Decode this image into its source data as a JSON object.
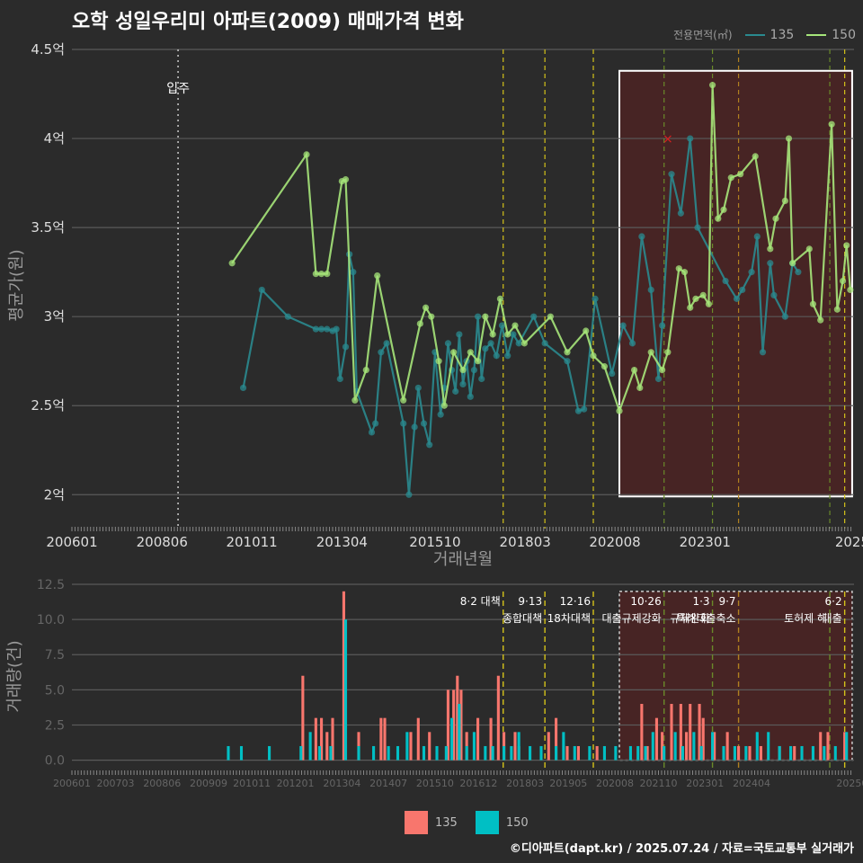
{
  "title": "오학 성일우리미 아파트(2009) 매매가격 변화",
  "source": "©디아파트(dapt.kr) / 2025.07.24 / 자료=국토교통부 실거래가",
  "legend": {
    "title": "전용면적(㎡)",
    "items": [
      {
        "name": "135",
        "line": "#2a8a8f",
        "bar": "#f8766d"
      },
      {
        "name": "150",
        "line": "#a6e67a",
        "bar": "#00bfc4"
      }
    ]
  },
  "chart_data": [
    {
      "type": "line",
      "xlabel": "거래년월",
      "ylabel": "평균가(원)",
      "ylim": [
        1.85,
        4.5
      ],
      "yticks": [
        {
          "v": 2,
          "label": "2억"
        },
        {
          "v": 2.5,
          "label": "2.5억"
        },
        {
          "v": 3,
          "label": "3억"
        },
        {
          "v": 3.5,
          "label": "3.5억"
        },
        {
          "v": 4,
          "label": "4억"
        },
        {
          "v": 4.5,
          "label": "4.5억"
        }
      ],
      "xticks": [
        "200601",
        "200806",
        "201011",
        "201304",
        "201510",
        "201803",
        "202008",
        "202301",
        "2025"
      ],
      "annotation": "입주",
      "series": [
        {
          "name": "135",
          "color": "#2a8a8f",
          "points": [
            [
              2010.6,
              2.6
            ],
            [
              2011.1,
              3.15
            ],
            [
              2011.8,
              3.0
            ],
            [
              2012.55,
              2.93
            ],
            [
              2012.7,
              2.93
            ],
            [
              2012.85,
              2.93
            ],
            [
              2013.0,
              2.92
            ],
            [
              2013.1,
              2.93
            ],
            [
              2013.2,
              2.65
            ],
            [
              2013.35,
              2.83
            ],
            [
              2013.45,
              3.35
            ],
            [
              2013.55,
              3.25
            ],
            [
              2013.65,
              2.58
            ],
            [
              2014.05,
              2.35
            ],
            [
              2014.15,
              2.4
            ],
            [
              2014.3,
              2.8
            ],
            [
              2014.45,
              2.85
            ],
            [
              2014.9,
              2.4
            ],
            [
              2015.05,
              2.0
            ],
            [
              2015.2,
              2.38
            ],
            [
              2015.3,
              2.6
            ],
            [
              2015.45,
              2.4
            ],
            [
              2015.6,
              2.28
            ],
            [
              2015.75,
              2.8
            ],
            [
              2015.9,
              2.45
            ],
            [
              2016.0,
              2.6
            ],
            [
              2016.1,
              2.85
            ],
            [
              2016.2,
              2.7
            ],
            [
              2016.3,
              2.58
            ],
            [
              2016.4,
              2.9
            ],
            [
              2016.5,
              2.62
            ],
            [
              2016.6,
              2.75
            ],
            [
              2016.7,
              2.55
            ],
            [
              2016.8,
              2.7
            ],
            [
              2016.9,
              3.0
            ],
            [
              2017.0,
              2.65
            ],
            [
              2017.1,
              2.82
            ],
            [
              2017.25,
              2.85
            ],
            [
              2017.4,
              2.78
            ],
            [
              2017.55,
              2.95
            ],
            [
              2017.7,
              2.78
            ],
            [
              2017.85,
              2.9
            ],
            [
              2018.0,
              2.85
            ],
            [
              2018.4,
              3.0
            ],
            [
              2018.7,
              2.85
            ],
            [
              2019.3,
              2.75
            ],
            [
              2019.6,
              2.47
            ],
            [
              2019.75,
              2.48
            ],
            [
              2020.05,
              3.1
            ],
            [
              2020.5,
              2.68
            ],
            [
              2020.8,
              2.95
            ],
            [
              2021.05,
              2.85
            ],
            [
              2021.3,
              3.45
            ],
            [
              2021.55,
              3.15
            ],
            [
              2021.75,
              2.65
            ],
            [
              2021.85,
              2.95
            ],
            [
              2022.1,
              3.8
            ],
            [
              2022.35,
              3.58
            ],
            [
              2022.6,
              4.0
            ],
            [
              2022.8,
              3.5
            ],
            [
              2023.55,
              3.2
            ],
            [
              2023.85,
              3.1
            ],
            [
              2024.0,
              3.15
            ],
            [
              2024.25,
              3.25
            ],
            [
              2024.4,
              3.45
            ],
            [
              2024.55,
              2.8
            ],
            [
              2024.75,
              3.3
            ],
            [
              2024.85,
              3.12
            ],
            [
              2025.15,
              3.0
            ],
            [
              2025.35,
              3.3
            ],
            [
              2025.5,
              3.25
            ]
          ]
        },
        {
          "name": "150",
          "color": "#a6e67a",
          "points": [
            [
              2010.3,
              3.3
            ],
            [
              2012.3,
              3.91
            ],
            [
              2012.55,
              3.24
            ],
            [
              2012.7,
              3.24
            ],
            [
              2012.85,
              3.24
            ],
            [
              2013.25,
              3.76
            ],
            [
              2013.35,
              3.77
            ],
            [
              2013.6,
              2.53
            ],
            [
              2013.9,
              2.7
            ],
            [
              2014.2,
              3.23
            ],
            [
              2014.9,
              2.53
            ],
            [
              2015.35,
              2.96
            ],
            [
              2015.5,
              3.05
            ],
            [
              2015.65,
              3.0
            ],
            [
              2015.85,
              2.75
            ],
            [
              2016.0,
              2.5
            ],
            [
              2016.25,
              2.8
            ],
            [
              2016.5,
              2.7
            ],
            [
              2016.7,
              2.8
            ],
            [
              2016.9,
              2.75
            ],
            [
              2017.1,
              3.0
            ],
            [
              2017.3,
              2.9
            ],
            [
              2017.5,
              3.1
            ],
            [
              2017.7,
              2.9
            ],
            [
              2017.9,
              2.95
            ],
            [
              2018.15,
              2.85
            ],
            [
              2018.85,
              3.0
            ],
            [
              2019.3,
              2.8
            ],
            [
              2019.8,
              2.92
            ],
            [
              2020.0,
              2.78
            ],
            [
              2020.3,
              2.72
            ],
            [
              2020.7,
              2.47
            ],
            [
              2021.1,
              2.7
            ],
            [
              2021.25,
              2.6
            ],
            [
              2021.55,
              2.8
            ],
            [
              2021.85,
              2.7
            ],
            [
              2022.0,
              2.8
            ],
            [
              2022.3,
              3.27
            ],
            [
              2022.45,
              3.25
            ],
            [
              2022.6,
              3.05
            ],
            [
              2022.75,
              3.1
            ],
            [
              2022.95,
              3.12
            ],
            [
              2023.1,
              3.07
            ],
            [
              2023.2,
              4.3
            ],
            [
              2023.35,
              3.55
            ],
            [
              2023.5,
              3.6
            ],
            [
              2023.7,
              3.78
            ],
            [
              2023.95,
              3.8
            ],
            [
              2024.35,
              3.9
            ],
            [
              2024.75,
              3.38
            ],
            [
              2024.9,
              3.55
            ],
            [
              2025.15,
              3.65
            ],
            [
              2025.25,
              4.0
            ],
            [
              2025.35,
              3.3
            ],
            [
              2025.8,
              3.38
            ],
            [
              2025.9,
              3.07
            ],
            [
              2026.1,
              2.98
            ],
            [
              2026.4,
              4.08
            ],
            [
              2026.55,
              3.04
            ],
            [
              2026.7,
              3.2
            ],
            [
              2026.8,
              3.4
            ],
            [
              2026.9,
              3.15
            ]
          ]
        }
      ]
    },
    {
      "type": "bar",
      "xlabel": "",
      "ylabel": "거래량(건)",
      "ylim": [
        -0.6,
        12.5
      ],
      "yticks": [
        {
          "v": 0,
          "label": "0.0"
        },
        {
          "v": 2.5,
          "label": "2.5"
        },
        {
          "v": 5,
          "label": "5.0"
        },
        {
          "v": 7.5,
          "label": "7.5"
        },
        {
          "v": 10,
          "label": "10.0"
        },
        {
          "v": 12.5,
          "label": "12.5"
        }
      ],
      "xticks": [
        "200601",
        "200703",
        "200806",
        "200909",
        "201011",
        "201201",
        "201304",
        "201407",
        "201510",
        "201612",
        "201803",
        "201905",
        "202008",
        "202110",
        "202301",
        "202404",
        "20250"
      ],
      "series": [
        {
          "name": "135",
          "color": "#f8766d",
          "points": [
            [
              2012.2,
              6
            ],
            [
              2012.55,
              3
            ],
            [
              2012.7,
              3
            ],
            [
              2012.85,
              2
            ],
            [
              2013.0,
              3
            ],
            [
              2013.3,
              12
            ],
            [
              2013.7,
              2
            ],
            [
              2014.3,
              3
            ],
            [
              2014.4,
              3
            ],
            [
              2015.1,
              2
            ],
            [
              2015.3,
              3
            ],
            [
              2015.6,
              2
            ],
            [
              2016.1,
              5
            ],
            [
              2016.25,
              5
            ],
            [
              2016.35,
              6
            ],
            [
              2016.45,
              5
            ],
            [
              2016.6,
              2
            ],
            [
              2016.9,
              3
            ],
            [
              2017.25,
              3
            ],
            [
              2017.45,
              6
            ],
            [
              2017.6,
              2
            ],
            [
              2017.9,
              2
            ],
            [
              2018.0,
              1
            ],
            [
              2018.8,
              2
            ],
            [
              2019.0,
              3
            ],
            [
              2019.3,
              1
            ],
            [
              2019.6,
              1
            ],
            [
              2020.1,
              1
            ],
            [
              2021.3,
              4
            ],
            [
              2021.45,
              1
            ],
            [
              2021.7,
              3
            ],
            [
              2021.85,
              2
            ],
            [
              2022.1,
              4
            ],
            [
              2022.35,
              4
            ],
            [
              2022.5,
              2
            ],
            [
              2022.6,
              4
            ],
            [
              2022.85,
              4
            ],
            [
              2022.95,
              3
            ],
            [
              2023.25,
              2
            ],
            [
              2023.6,
              2
            ],
            [
              2023.9,
              1
            ],
            [
              2024.2,
              1
            ],
            [
              2024.5,
              1
            ],
            [
              2025.0,
              1
            ],
            [
              2025.4,
              1
            ],
            [
              2026.1,
              2
            ],
            [
              2026.3,
              2
            ],
            [
              2026.75,
              2
            ]
          ]
        },
        {
          "name": "150",
          "color": "#00bfc4",
          "points": [
            [
              2010.2,
              1
            ],
            [
              2010.55,
              1
            ],
            [
              2011.3,
              1
            ],
            [
              2012.15,
              1
            ],
            [
              2012.4,
              2
            ],
            [
              2012.65,
              1
            ],
            [
              2012.95,
              1
            ],
            [
              2013.35,
              10
            ],
            [
              2013.7,
              1
            ],
            [
              2014.1,
              1
            ],
            [
              2014.5,
              1
            ],
            [
              2014.75,
              1
            ],
            [
              2015.0,
              2
            ],
            [
              2015.45,
              1
            ],
            [
              2015.8,
              1
            ],
            [
              2016.05,
              1
            ],
            [
              2016.2,
              3
            ],
            [
              2016.4,
              4
            ],
            [
              2016.6,
              1
            ],
            [
              2016.8,
              2
            ],
            [
              2017.1,
              1
            ],
            [
              2017.3,
              1
            ],
            [
              2017.6,
              1
            ],
            [
              2017.8,
              1
            ],
            [
              2018.0,
              2
            ],
            [
              2018.3,
              1
            ],
            [
              2018.6,
              1
            ],
            [
              2019.0,
              1
            ],
            [
              2019.2,
              2
            ],
            [
              2019.5,
              1
            ],
            [
              2019.9,
              1
            ],
            [
              2020.3,
              1
            ],
            [
              2020.6,
              1
            ],
            [
              2021.0,
              1
            ],
            [
              2021.2,
              1
            ],
            [
              2021.4,
              1
            ],
            [
              2021.6,
              2
            ],
            [
              2021.9,
              1
            ],
            [
              2022.2,
              2
            ],
            [
              2022.4,
              1
            ],
            [
              2022.7,
              2
            ],
            [
              2022.9,
              1
            ],
            [
              2023.2,
              2
            ],
            [
              2023.5,
              1
            ],
            [
              2023.8,
              1
            ],
            [
              2024.1,
              1
            ],
            [
              2024.4,
              2
            ],
            [
              2024.7,
              2
            ],
            [
              2025.0,
              1
            ],
            [
              2025.3,
              1
            ],
            [
              2025.6,
              1
            ],
            [
              2025.9,
              1
            ],
            [
              2026.2,
              1
            ],
            [
              2026.5,
              1
            ],
            [
              2026.8,
              2
            ]
          ]
        }
      ]
    }
  ],
  "policy_lines": [
    {
      "t": 2017.58,
      "color": "#d4c21a",
      "label1": "8·2 대책",
      "label2": ""
    },
    {
      "t": 2018.7,
      "color": "#d4c21a",
      "label1": "9·13",
      "label2": "종합대책"
    },
    {
      "t": 2020.0,
      "color": "#d4c21a",
      "label1": "12·16",
      "label2": "18차대책"
    },
    {
      "t": 2021.9,
      "color": "#6a8a2a",
      "label1": "10·26",
      "label2": "대출규제강화"
    },
    {
      "t": 2023.2,
      "color": "#6a8a2a",
      "label1": "1·3",
      "label2": "규제완화"
    },
    {
      "t": 2023.9,
      "color": "#b08020",
      "label1": "9·7",
      "label2": "특례대출축소"
    },
    {
      "t": 2026.35,
      "color": "#6a8a2a",
      "label1": "",
      "label2": "토허제 해"
    },
    {
      "t": 2026.75,
      "color": "#d4c21a",
      "label1": "6·2",
      "label2": "대출"
    }
  ],
  "highlight_label": ""
}
